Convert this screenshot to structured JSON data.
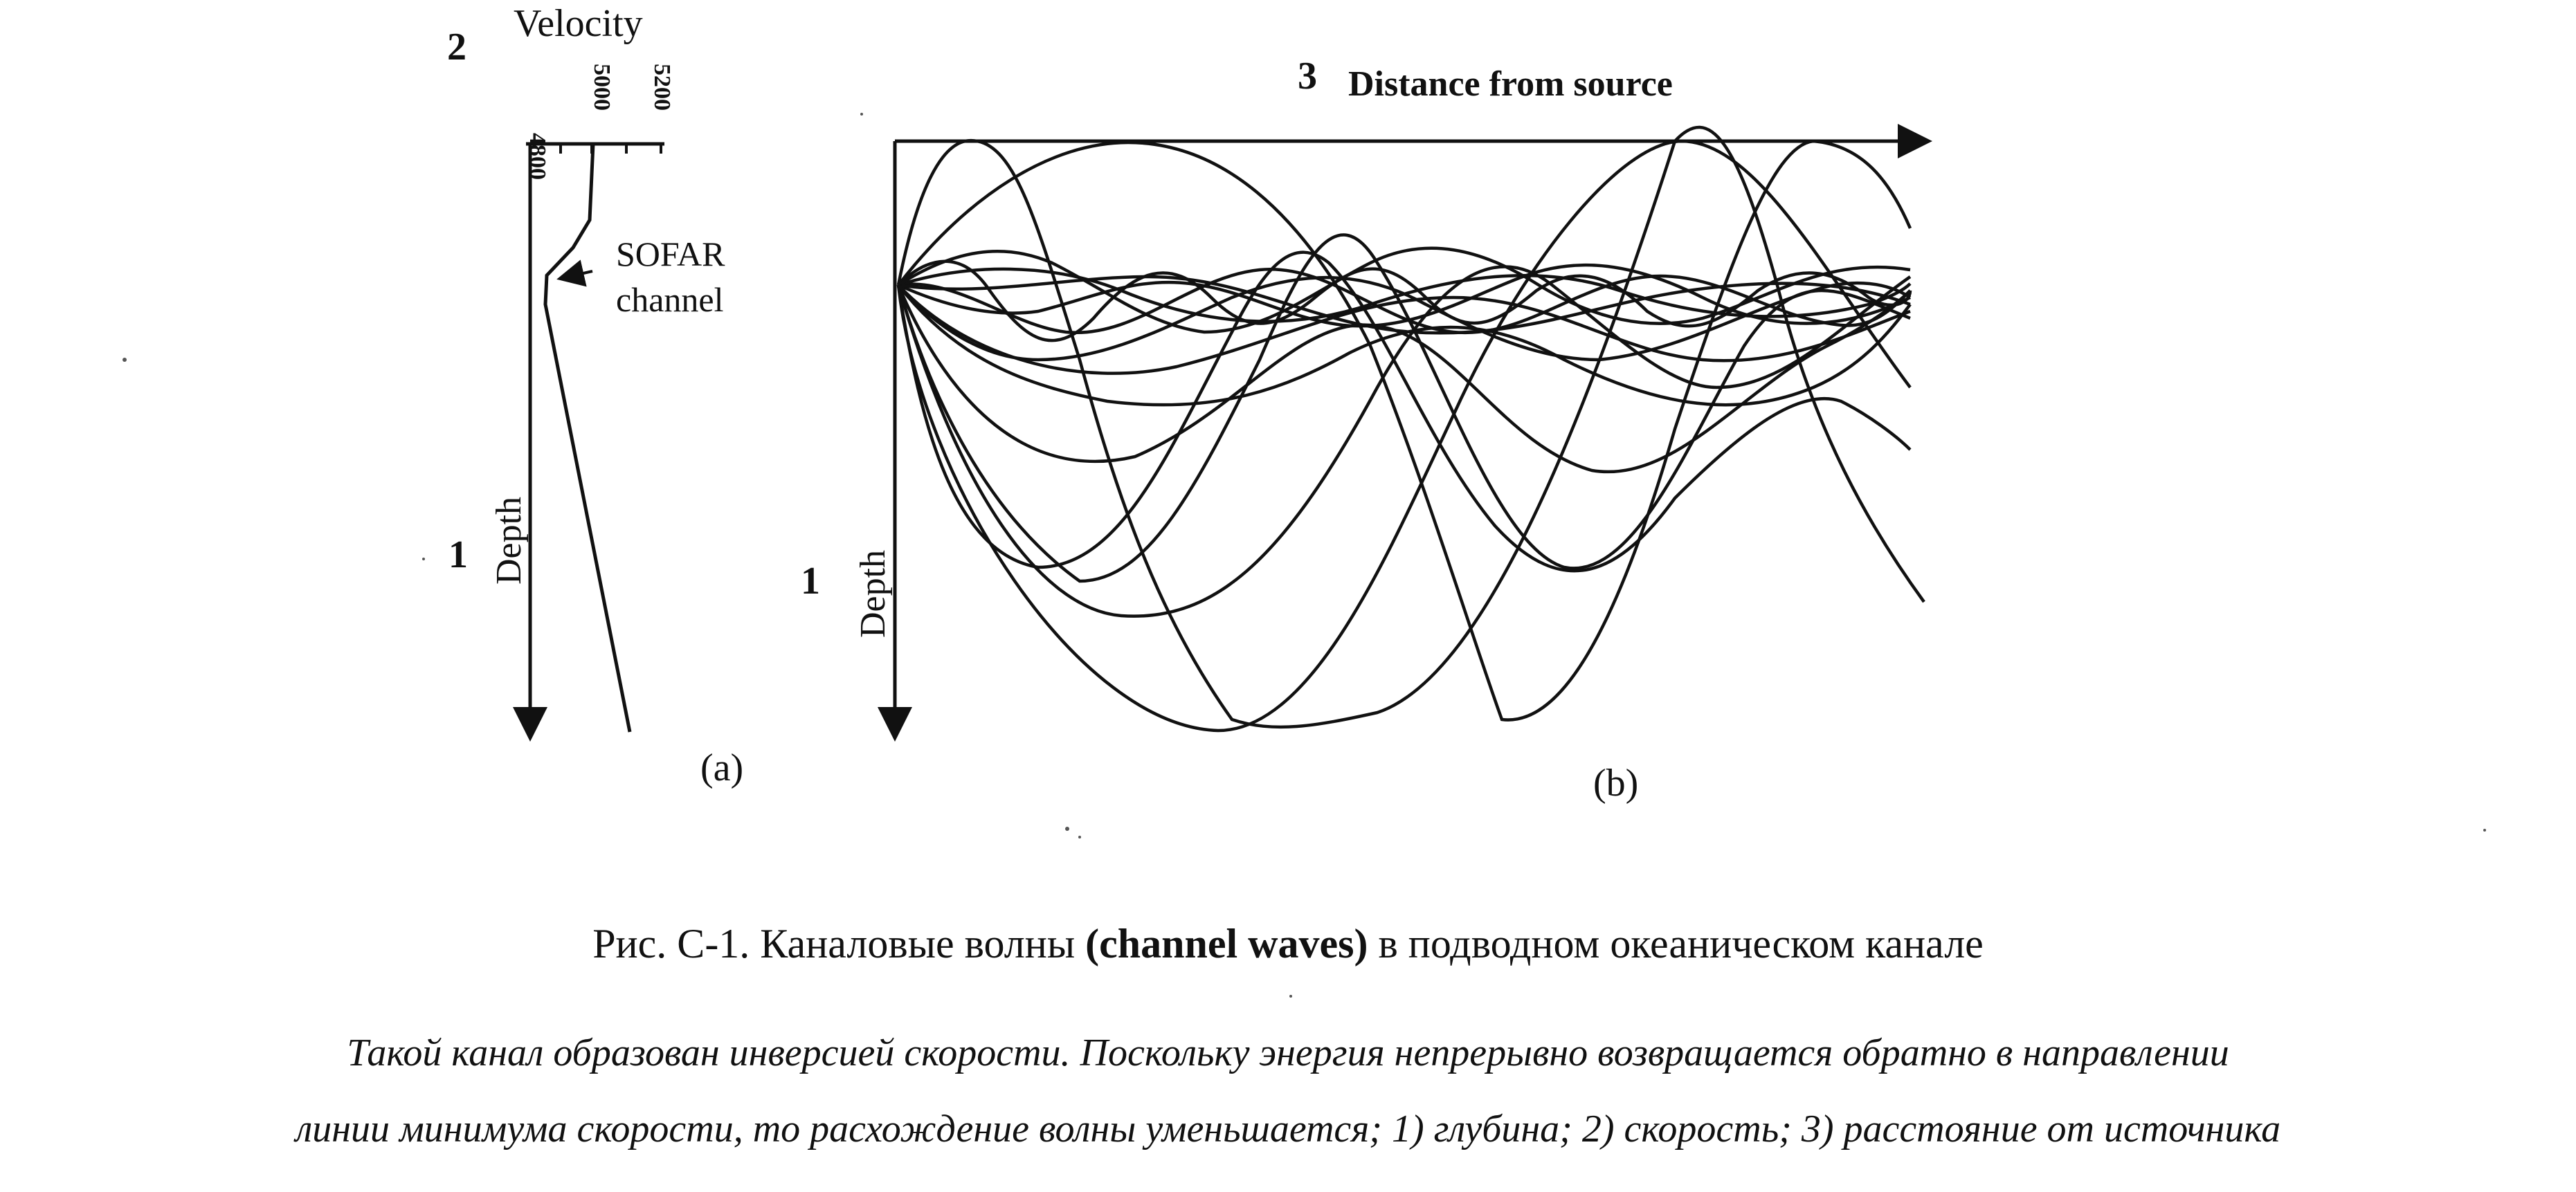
{
  "panel_a": {
    "marker_velocity": "2",
    "velocity_label": "Velocity",
    "velocity_ticks": [
      "4800",
      "5000",
      "5200"
    ],
    "depth_label": "Depth",
    "marker_depth": "1",
    "sofar_line1": "SOFAR",
    "sofar_line2": "channel",
    "panel_label": "(a)"
  },
  "panel_b": {
    "marker_distance": "3",
    "distance_label": "Distance from source",
    "depth_label": "Depth",
    "marker_depth": "1",
    "panel_label": "(b)"
  },
  "caption": {
    "prefix": "Рис. C-1. Каналовые волны ",
    "bold": "(channel waves)",
    "suffix": " в подводном океаническом канале"
  },
  "description": {
    "line1": "Такой канал образован инверсией скорости. Поскольку энергия непрерывно возвращается обратно в направлении",
    "line2": "линии минимума скорости, то расхождение волны уменьшается; 1) глубина; 2) скорость; 3) расстояние от источника"
  },
  "colors": {
    "ink": "#111111",
    "paper": "#ffffff"
  }
}
